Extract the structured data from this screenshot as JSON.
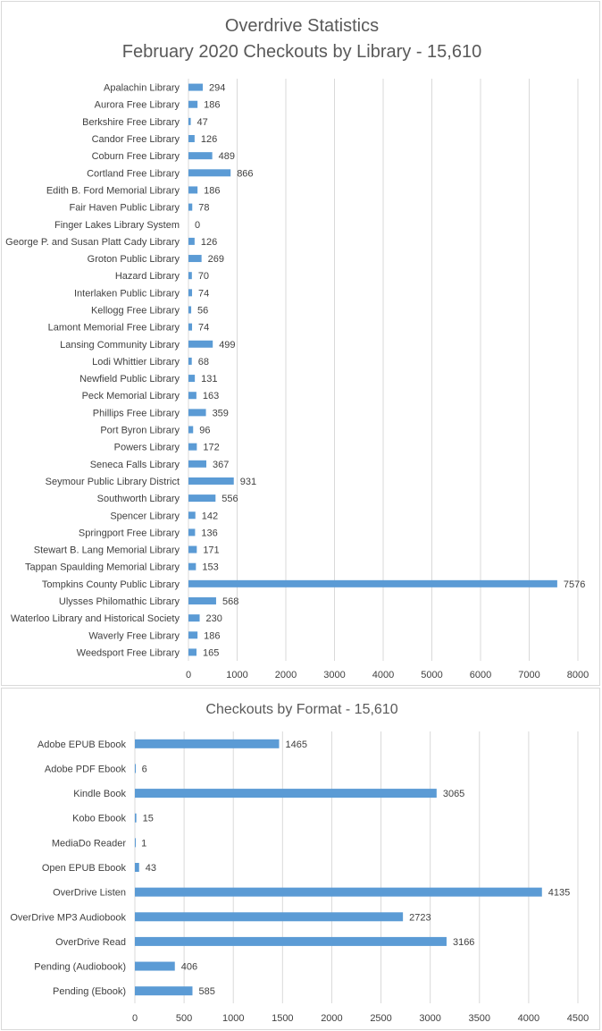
{
  "chart_data": [
    {
      "type": "bar",
      "orientation": "horizontal",
      "title": "Overdrive Statistics",
      "subtitle": "February 2020 Checkouts by Library - 15,610",
      "categories": [
        "Apalachin Library",
        "Aurora Free Library",
        "Berkshire Free Library",
        "Candor Free Library",
        "Coburn Free Library",
        "Cortland Free Library",
        "Edith B. Ford Memorial Library",
        "Fair Haven Public Library",
        "Finger Lakes Library System",
        "George P. and Susan Platt Cady Library",
        "Groton Public Library",
        "Hazard Library",
        "Interlaken Public Library",
        "Kellogg Free Library",
        "Lamont Memorial Free Library",
        "Lansing Community Library",
        "Lodi Whittier Library",
        "Newfield Public Library",
        "Peck Memorial Library",
        "Phillips Free Library",
        "Port Byron Library",
        "Powers Library",
        "Seneca Falls Library",
        "Seymour Public Library District",
        "Southworth Library",
        "Spencer Library",
        "Springport Free Library",
        "Stewart B. Lang Memorial Library",
        "Tappan Spaulding Memorial Library",
        "Tompkins County Public Library",
        "Ulysses Philomathic Library",
        "Waterloo Library and Historical Society",
        "Waverly Free Library",
        "Weedsport Free Library"
      ],
      "values": [
        294,
        186,
        47,
        126,
        489,
        866,
        186,
        78,
        0,
        126,
        269,
        70,
        74,
        56,
        74,
        499,
        68,
        131,
        163,
        359,
        96,
        172,
        367,
        931,
        556,
        142,
        136,
        171,
        153,
        7576,
        568,
        230,
        186,
        165
      ],
      "xlim": [
        0,
        8000
      ],
      "xticks": [
        0,
        1000,
        2000,
        3000,
        4000,
        5000,
        6000,
        7000,
        8000
      ],
      "grid": true,
      "bar_color": "#5b9bd5"
    },
    {
      "type": "bar",
      "orientation": "horizontal",
      "title": "Checkouts by Format - 15,610",
      "categories": [
        "Adobe EPUB Ebook",
        "Adobe PDF Ebook",
        "Kindle Book",
        "Kobo Ebook",
        "MediaDo Reader",
        "Open EPUB Ebook",
        "OverDrive Listen",
        "OverDrive MP3 Audiobook",
        "OverDrive Read",
        "Pending (Audiobook)",
        "Pending (Ebook)"
      ],
      "values": [
        1465,
        6,
        3065,
        15,
        1,
        43,
        4135,
        2723,
        3166,
        406,
        585
      ],
      "xlim": [
        0,
        4500
      ],
      "xticks": [
        0,
        500,
        1000,
        1500,
        2000,
        2500,
        3000,
        3500,
        4000,
        4500
      ],
      "grid": true,
      "bar_color": "#5b9bd5"
    }
  ],
  "colors": {
    "bar": "#5b9bd5",
    "grid": "#d9d9d9",
    "text": "#404040",
    "title": "#595959"
  }
}
